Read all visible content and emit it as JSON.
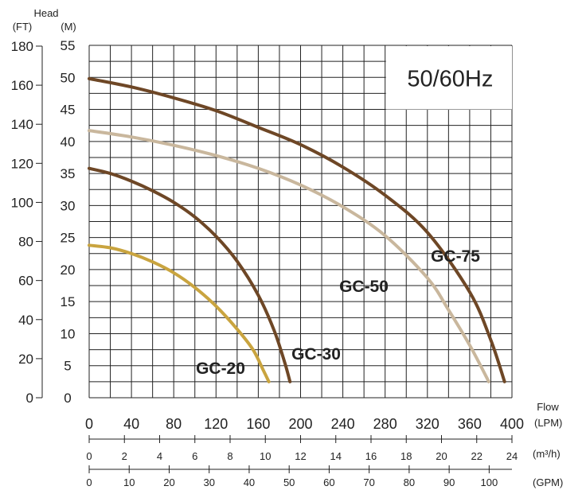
{
  "chart_data": {
    "type": "line",
    "title": "50/60Hz",
    "head_label": "Head",
    "left_axes": [
      {
        "unit": "(FT)",
        "ticks": [
          0,
          20,
          40,
          60,
          80,
          100,
          120,
          140,
          160,
          180
        ],
        "range": [
          0,
          180.4
        ]
      },
      {
        "unit": "(M)",
        "ticks": [
          0,
          5,
          10,
          15,
          20,
          25,
          30,
          35,
          40,
          45,
          50,
          55
        ],
        "range": [
          0,
          55
        ]
      }
    ],
    "flow_label": "Flow",
    "bottom_axes": [
      {
        "unit": "(LPM)",
        "ticks": [
          0,
          40,
          80,
          120,
          160,
          200,
          240,
          280,
          320,
          360,
          400
        ],
        "range": [
          0,
          400
        ]
      },
      {
        "unit": "(m³/h)",
        "ticks": [
          0,
          2,
          4,
          6,
          8,
          10,
          12,
          14,
          16,
          18,
          20,
          22,
          24
        ],
        "range": [
          0,
          24
        ]
      },
      {
        "unit": "(GPM)",
        "ticks": [
          0,
          10,
          20,
          30,
          40,
          50,
          60,
          70,
          80,
          90,
          100
        ],
        "range": [
          0,
          105.7
        ]
      }
    ],
    "grid": true,
    "x_unit": "LPM",
    "y_unit": "M",
    "series": [
      {
        "name": "GC-20",
        "color": "#c9a43f",
        "points": [
          [
            0,
            23.8
          ],
          [
            20,
            23.4
          ],
          [
            40,
            22.5
          ],
          [
            60,
            21.2
          ],
          [
            80,
            19.5
          ],
          [
            100,
            17.2
          ],
          [
            120,
            14.3
          ],
          [
            140,
            10.7
          ],
          [
            155,
            7.5
          ],
          [
            165,
            4.2
          ],
          [
            170,
            2.5
          ]
        ]
      },
      {
        "name": "GC-30",
        "color": "#6e4726",
        "points": [
          [
            0,
            35.8
          ],
          [
            20,
            35
          ],
          [
            40,
            33.8
          ],
          [
            60,
            32.3
          ],
          [
            80,
            30.5
          ],
          [
            100,
            28.2
          ],
          [
            120,
            25.2
          ],
          [
            140,
            21.3
          ],
          [
            160,
            16
          ],
          [
            175,
            10.5
          ],
          [
            185,
            5.5
          ],
          [
            190,
            2.5
          ]
        ]
      },
      {
        "name": "GC-50",
        "color": "#c9b79d",
        "points": [
          [
            0,
            41.7
          ],
          [
            40,
            40.7
          ],
          [
            80,
            39.4
          ],
          [
            120,
            37.8
          ],
          [
            160,
            35.8
          ],
          [
            200,
            33.2
          ],
          [
            240,
            29.8
          ],
          [
            280,
            25.3
          ],
          [
            320,
            18.7
          ],
          [
            340,
            13.7
          ],
          [
            360,
            8.2
          ],
          [
            375,
            3.5
          ],
          [
            378,
            2.5
          ]
        ]
      },
      {
        "name": "GC-75",
        "color": "#6e4726",
        "points": [
          [
            0,
            49.8
          ],
          [
            40,
            48.5
          ],
          [
            80,
            46.8
          ],
          [
            120,
            44.8
          ],
          [
            160,
            42.2
          ],
          [
            200,
            39.5
          ],
          [
            240,
            36
          ],
          [
            280,
            31.6
          ],
          [
            320,
            25.8
          ],
          [
            360,
            16.5
          ],
          [
            380,
            9
          ],
          [
            393,
            2.5
          ]
        ]
      }
    ]
  }
}
